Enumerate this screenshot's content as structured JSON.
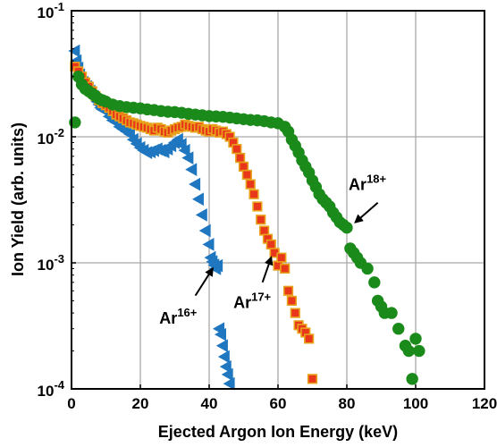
{
  "chart_data": {
    "type": "scatter",
    "xlabel": "Ejected Argon Ion Energy (keV)",
    "ylabel": "Ion Yield (arb. units)",
    "xlim": [
      0,
      120
    ],
    "ylim": [
      0.0001,
      0.1
    ],
    "yscale": "log",
    "grid": true,
    "x_ticks": [
      0,
      20,
      40,
      60,
      80,
      100,
      120
    ],
    "x_tick_labels": [
      "0",
      "20",
      "40",
      "60",
      "80",
      "100",
      "120"
    ],
    "y_ticks": [
      0.0001,
      0.001,
      0.01,
      0.1
    ],
    "y_tick_labels": [
      {
        "base": "10",
        "exp": "-4"
      },
      {
        "base": "10",
        "exp": "-3"
      },
      {
        "base": "10",
        "exp": "-2"
      },
      {
        "base": "10",
        "exp": "-1"
      }
    ],
    "series": [
      {
        "name": "Ar16+",
        "marker": "triangle-left",
        "color": "#1f77c0",
        "edge": "#1f77c0",
        "points": [
          [
            1,
            0.048
          ],
          [
            1.5,
            0.04
          ],
          [
            2,
            0.035
          ],
          [
            2.5,
            0.031
          ],
          [
            3,
            0.029
          ],
          [
            3.5,
            0.027
          ],
          [
            4,
            0.026
          ],
          [
            4.5,
            0.025
          ],
          [
            5,
            0.024
          ],
          [
            5.5,
            0.023
          ],
          [
            6,
            0.022
          ],
          [
            6.5,
            0.021
          ],
          [
            7,
            0.02
          ],
          [
            7.5,
            0.019
          ],
          [
            8,
            0.018
          ],
          [
            8.5,
            0.017
          ],
          [
            9,
            0.0165
          ],
          [
            10,
            0.016
          ],
          [
            11,
            0.0145
          ],
          [
            12,
            0.0135
          ],
          [
            13,
            0.013
          ],
          [
            14,
            0.012
          ],
          [
            15,
            0.0115
          ],
          [
            16,
            0.011
          ],
          [
            17,
            0.0105
          ],
          [
            18,
            0.0095
          ],
          [
            19,
            0.0088
          ],
          [
            20,
            0.0082
          ],
          [
            21,
            0.0078
          ],
          [
            22,
            0.0075
          ],
          [
            23,
            0.0076
          ],
          [
            24,
            0.0078
          ],
          [
            25,
            0.008
          ],
          [
            26,
            0.0078
          ],
          [
            27,
            0.0076
          ],
          [
            28,
            0.008
          ],
          [
            29,
            0.0085
          ],
          [
            30,
            0.009
          ],
          [
            31,
            0.0095
          ],
          [
            32,
            0.0087
          ],
          [
            33,
            0.0078
          ],
          [
            34,
            0.0068
          ],
          [
            35,
            0.0055
          ],
          [
            36,
            0.0042
          ],
          [
            37,
            0.0032
          ],
          [
            38,
            0.0024
          ],
          [
            39,
            0.0018
          ],
          [
            40,
            0.0014
          ],
          [
            40.5,
            0.0011
          ],
          [
            41,
            0.00102
          ],
          [
            41.5,
            0.00096
          ],
          [
            42,
            0.0009
          ],
          [
            42.5,
            0.00095
          ],
          [
            43,
            0.0003
          ],
          [
            43.5,
            0.00027
          ],
          [
            44,
            0.00022
          ],
          [
            44.5,
            0.00018
          ],
          [
            45,
            0.00015
          ],
          [
            45.5,
            0.00013
          ],
          [
            46,
            0.00011
          ]
        ]
      },
      {
        "name": "Ar17+",
        "marker": "square",
        "color": "#e8371a",
        "edge": "#e8a21a",
        "points": [
          [
            1,
            0.036
          ],
          [
            2,
            0.033
          ],
          [
            3,
            0.03
          ],
          [
            4,
            0.027
          ],
          [
            5,
            0.025
          ],
          [
            6,
            0.023
          ],
          [
            7,
            0.021
          ],
          [
            8,
            0.0195
          ],
          [
            9,
            0.0185
          ],
          [
            10,
            0.0178
          ],
          [
            11,
            0.017
          ],
          [
            12,
            0.016
          ],
          [
            13,
            0.015
          ],
          [
            14,
            0.0145
          ],
          [
            15,
            0.014
          ],
          [
            16,
            0.0135
          ],
          [
            17,
            0.013
          ],
          [
            18,
            0.0128
          ],
          [
            19,
            0.0125
          ],
          [
            20,
            0.0122
          ],
          [
            21,
            0.012
          ],
          [
            22,
            0.0118
          ],
          [
            23,
            0.0115
          ],
          [
            24,
            0.0112
          ],
          [
            25,
            0.0118
          ],
          [
            26,
            0.0115
          ],
          [
            27,
            0.011
          ],
          [
            28,
            0.0108
          ],
          [
            29,
            0.0112
          ],
          [
            30,
            0.0115
          ],
          [
            31,
            0.0118
          ],
          [
            32,
            0.012
          ],
          [
            33,
            0.0125
          ],
          [
            34,
            0.0122
          ],
          [
            35,
            0.012
          ],
          [
            36,
            0.0118
          ],
          [
            37,
            0.012
          ],
          [
            38,
            0.0115
          ],
          [
            39,
            0.0112
          ],
          [
            40,
            0.011
          ],
          [
            41,
            0.0115
          ],
          [
            42,
            0.0112
          ],
          [
            43,
            0.0108
          ],
          [
            44,
            0.011
          ],
          [
            45,
            0.0105
          ],
          [
            46,
            0.01
          ],
          [
            47,
            0.009
          ],
          [
            48,
            0.008
          ],
          [
            49,
            0.0068
          ],
          [
            50,
            0.0058
          ],
          [
            51,
            0.005
          ],
          [
            52,
            0.0042
          ],
          [
            53,
            0.0035
          ],
          [
            54,
            0.0028
          ],
          [
            55,
            0.0022
          ],
          [
            56,
            0.0018
          ],
          [
            57,
            0.00155
          ],
          [
            58,
            0.0014
          ],
          [
            59,
            0.0012
          ],
          [
            60,
            0.00095
          ],
          [
            61,
            0.0011
          ],
          [
            62,
            0.0009
          ],
          [
            63,
            0.0006
          ],
          [
            64,
            0.0005
          ],
          [
            65,
            0.0004
          ],
          [
            66,
            0.00032
          ],
          [
            67,
            0.0003
          ],
          [
            68,
            0.00028
          ],
          [
            69,
            0.00025
          ],
          [
            70,
            0.00012
          ]
        ]
      },
      {
        "name": "Ar18+",
        "marker": "circle",
        "color": "#1a8a1a",
        "edge": "#1a8a1a",
        "points": [
          [
            1,
            0.013
          ],
          [
            2,
            0.03
          ],
          [
            3,
            0.026
          ],
          [
            4,
            0.024
          ],
          [
            5,
            0.023
          ],
          [
            6,
            0.022
          ],
          [
            7,
            0.021
          ],
          [
            8,
            0.02
          ],
          [
            9,
            0.0195
          ],
          [
            10,
            0.019
          ],
          [
            12,
            0.018
          ],
          [
            14,
            0.0175
          ],
          [
            16,
            0.0172
          ],
          [
            18,
            0.017
          ],
          [
            20,
            0.0168
          ],
          [
            22,
            0.0165
          ],
          [
            24,
            0.0163
          ],
          [
            26,
            0.016
          ],
          [
            28,
            0.0158
          ],
          [
            30,
            0.0157
          ],
          [
            32,
            0.0155
          ],
          [
            34,
            0.0152
          ],
          [
            36,
            0.015
          ],
          [
            38,
            0.0148
          ],
          [
            40,
            0.0146
          ],
          [
            42,
            0.0145
          ],
          [
            44,
            0.0144
          ],
          [
            46,
            0.0142
          ],
          [
            48,
            0.014
          ],
          [
            50,
            0.0138
          ],
          [
            52,
            0.0136
          ],
          [
            54,
            0.0135
          ],
          [
            56,
            0.0133
          ],
          [
            58,
            0.013
          ],
          [
            60,
            0.0128
          ],
          [
            62,
            0.012
          ],
          [
            63,
            0.011
          ],
          [
            64,
            0.0095
          ],
          [
            65,
            0.0085
          ],
          [
            66,
            0.0075
          ],
          [
            67,
            0.0065
          ],
          [
            68,
            0.0058
          ],
          [
            69,
            0.0052
          ],
          [
            70,
            0.0045
          ],
          [
            71,
            0.004
          ],
          [
            72,
            0.0035
          ],
          [
            73,
            0.0032
          ],
          [
            74,
            0.003
          ],
          [
            75,
            0.0028
          ],
          [
            76,
            0.0025
          ],
          [
            77,
            0.0023
          ],
          [
            78,
            0.0021
          ],
          [
            79,
            0.002
          ],
          [
            80,
            0.0019
          ],
          [
            81,
            0.0013
          ],
          [
            82,
            0.0012
          ],
          [
            83,
            0.0011
          ],
          [
            84,
            0.001
          ],
          [
            86,
            0.0009
          ],
          [
            88,
            0.0007
          ],
          [
            89,
            0.0005
          ],
          [
            90,
            0.00045
          ],
          [
            91,
            0.0004
          ],
          [
            93,
            0.0004
          ],
          [
            95,
            0.0003
          ],
          [
            97,
            0.00022
          ],
          [
            98,
            0.0002
          ],
          [
            99,
            0.00012
          ],
          [
            100,
            0.00025
          ],
          [
            101,
            0.0002
          ]
        ]
      }
    ],
    "annotations": [
      {
        "base": "Ar",
        "sup": "16+",
        "text_x": 31,
        "text_y": 0.00033,
        "tail_x": 36,
        "tail_y": 0.00055,
        "head_x": 41,
        "head_y": 0.0009
      },
      {
        "base": "Ar",
        "sup": "17+",
        "text_x": 52.5,
        "text_y": 0.00044,
        "tail_x": 55.5,
        "tail_y": 0.0007,
        "head_x": 58,
        "head_y": 0.0011
      },
      {
        "base": "Ar",
        "sup": "18+",
        "text_x": 86,
        "text_y": 0.0038,
        "tail_x": 89,
        "tail_y": 0.003,
        "head_x": 82.5,
        "head_y": 0.0021
      }
    ]
  }
}
